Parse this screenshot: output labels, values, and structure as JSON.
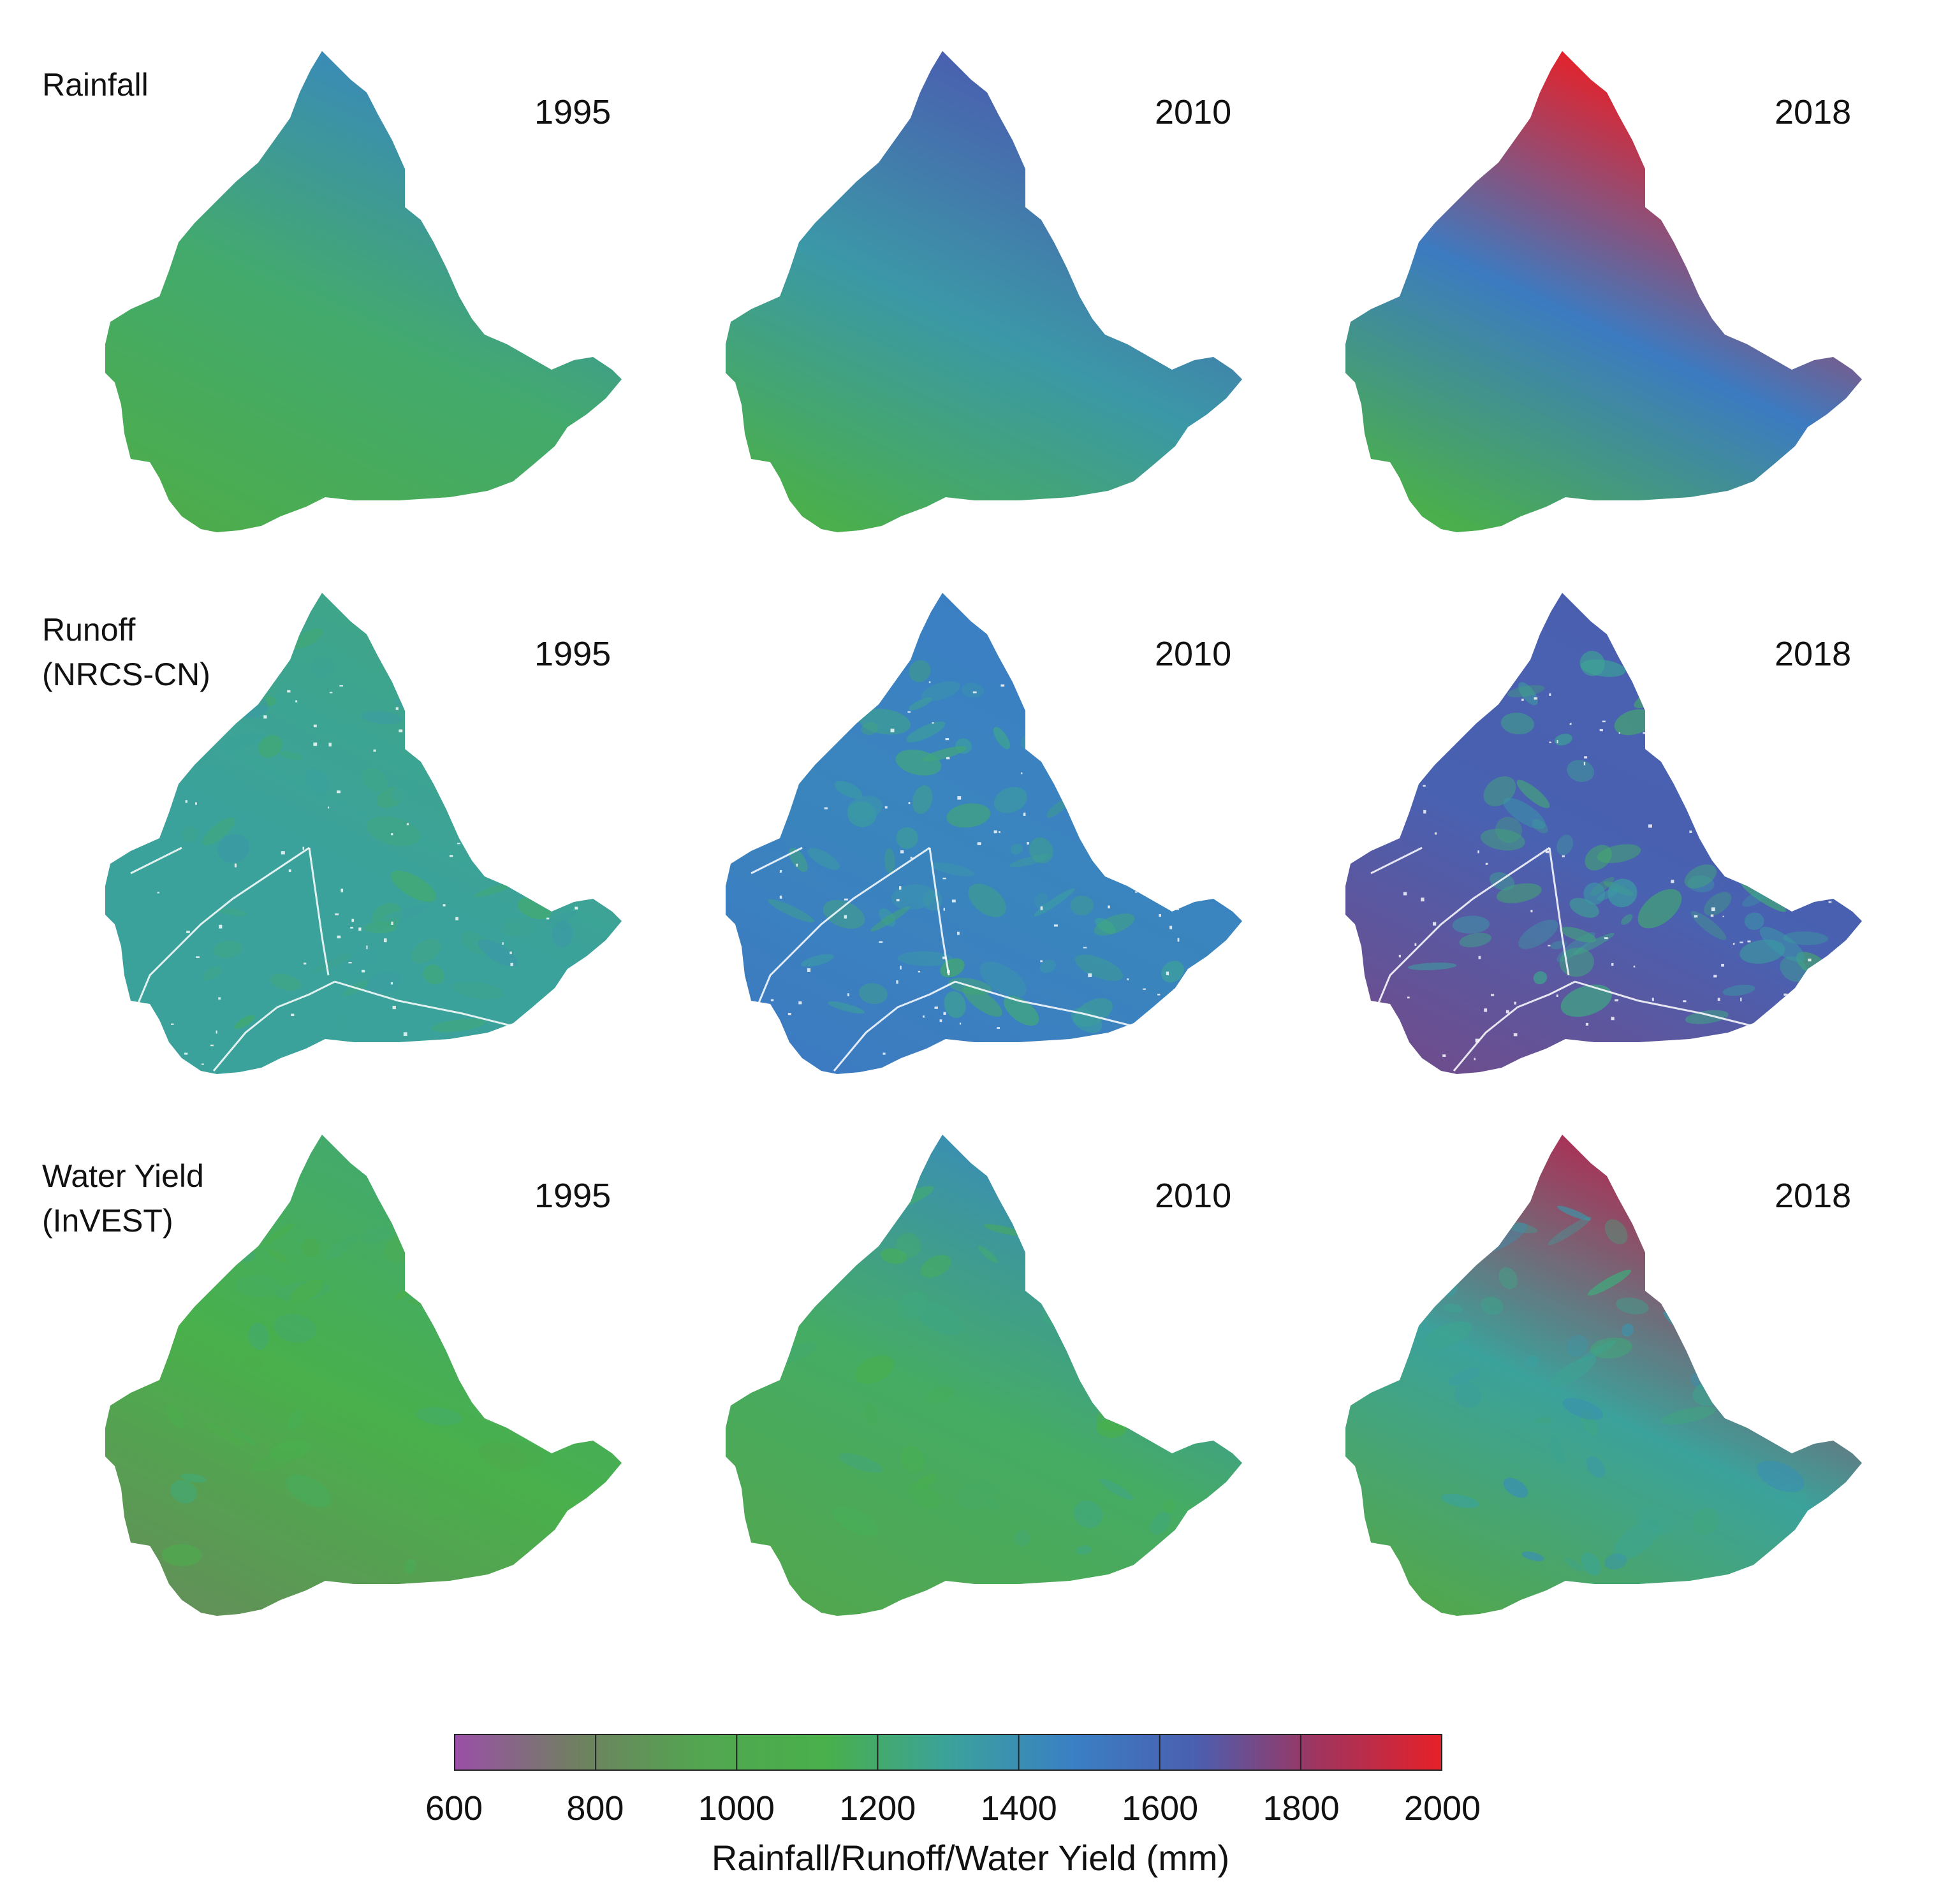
{
  "rows": [
    {
      "label": "Rainfall",
      "kind": "smooth",
      "maps": [
        {
          "year": "1995",
          "sw": 1060,
          "center": 1200,
          "ne": 1420
        },
        {
          "year": "2010",
          "sw": 1100,
          "center": 1350,
          "ne": 1650
        },
        {
          "year": "2018",
          "sw": 1100,
          "center": 1500,
          "ne": 2000
        }
      ]
    },
    {
      "label": "Runoff\n(NRCS-CN)",
      "kind": "runoff",
      "maps": [
        {
          "year": "1995",
          "sw": 1300,
          "center": 1300,
          "ne": 1260
        },
        {
          "year": "2010",
          "sw": 1500,
          "center": 1450,
          "ne": 1480
        },
        {
          "year": "2018",
          "sw": 1720,
          "center": 1640,
          "ne": 1650
        }
      ]
    },
    {
      "label": "Water Yield\n(InVEST)",
      "kind": "yield",
      "maps": [
        {
          "year": "1995",
          "sw": 860,
          "center": 1120,
          "ne": 1200
        },
        {
          "year": "2010",
          "sw": 960,
          "center": 1180,
          "ne": 1400
        },
        {
          "year": "2018",
          "sw": 960,
          "center": 1300,
          "ne": 1850
        }
      ]
    }
  ],
  "legend": {
    "title": "Rainfall/Runoff/Water Yield (mm)",
    "ticks": [
      "600",
      "800",
      "1000",
      "1200",
      "1400",
      "1600",
      "1800",
      "2000"
    ],
    "min": 600,
    "max": 2000,
    "colors": [
      "#9b4fa8",
      "#6f8060",
      "#52a650",
      "#49b04b",
      "#3ba29b",
      "#3a80c4",
      "#4a5fb0",
      "#a0345e",
      "#e62129"
    ]
  }
}
